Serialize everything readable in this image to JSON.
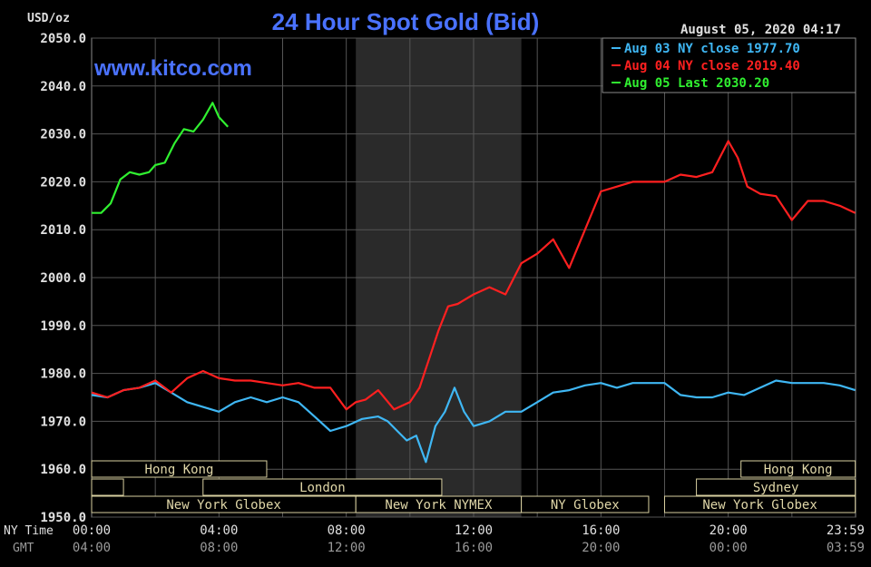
{
  "header": {
    "title": "24 Hour Spot Gold (Bid)",
    "unit": "USD/oz",
    "timestamp": "August 05, 2020 04:17",
    "watermark": "www.kitco.com"
  },
  "legend": {
    "placement": "top-right",
    "entries": [
      {
        "label": "Aug 03 NY close 1977.70",
        "color": "#3fb7f4"
      },
      {
        "label": "Aug 04 NY close 2019.40",
        "color": "#ff2020"
      },
      {
        "label": "Aug 05 Last 2030.20",
        "color": "#30f030"
      }
    ]
  },
  "axes": {
    "x_row_label_ny": "NY Time",
    "x_row_label_gmt": "GMT",
    "x_ticks_ny": [
      "00:00",
      "04:00",
      "08:00",
      "12:00",
      "16:00",
      "20:00",
      "23:59"
    ],
    "x_ticks_gmt": [
      "04:00",
      "08:00",
      "12:00",
      "16:00",
      "20:00",
      "00:00",
      "03:59"
    ],
    "y_ticks": [
      "2050.0",
      "2040.0",
      "2030.0",
      "2020.0",
      "2010.0",
      "2000.0",
      "1990.0",
      "1980.0",
      "1970.0",
      "1960.0",
      "1950.0"
    ]
  },
  "sessions": {
    "row1": [
      {
        "label": "Hong Kong",
        "start": 0,
        "end": 5.5
      },
      {
        "label": "Hong Kong",
        "start": 20.4,
        "end": 23.99
      }
    ],
    "row2": [
      {
        "label": "",
        "start": 0,
        "end": 1.0
      },
      {
        "label": "London",
        "start": 3.5,
        "end": 11.0
      },
      {
        "label": "Sydney",
        "start": 19.0,
        "end": 23.99
      }
    ],
    "row3": [
      {
        "label": "New York Globex",
        "start": 0,
        "end": 8.3
      },
      {
        "label": "New York NYMEX",
        "start": 8.3,
        "end": 13.5
      },
      {
        "label": "NY Globex",
        "start": 13.5,
        "end": 17.5
      },
      {
        "label": "New York Globex",
        "start": 18.0,
        "end": 23.99
      }
    ]
  },
  "chart_data": {
    "type": "line",
    "x_unit": "hours NY time",
    "xlim": [
      0,
      24
    ],
    "ylim": [
      1950,
      2050
    ],
    "grid": true,
    "shaded_region": [
      8.3,
      13.5
    ],
    "series": [
      {
        "name": "Aug 03 NY close 1977.70",
        "color": "#3fb7f4",
        "x": [
          0,
          0.5,
          1.0,
          1.5,
          2.0,
          2.5,
          3.0,
          3.5,
          4.0,
          4.5,
          5.0,
          5.5,
          6.0,
          6.5,
          7.0,
          7.5,
          8.0,
          8.5,
          9.0,
          9.3,
          9.6,
          9.9,
          10.2,
          10.5,
          10.8,
          11.1,
          11.4,
          11.7,
          12.0,
          12.5,
          13.0,
          13.5,
          14.0,
          14.5,
          15.0,
          15.5,
          16.0,
          16.5,
          17.0,
          17.5,
          18.0,
          18.5,
          19.0,
          19.5,
          20.0,
          20.5,
          21.0,
          21.5,
          22.0,
          22.5,
          23.0,
          23.5,
          23.99
        ],
        "y": [
          1975.5,
          1975.0,
          1976.5,
          1977.0,
          1978.0,
          1976.0,
          1974.0,
          1973.0,
          1972.0,
          1974.0,
          1975.0,
          1974.0,
          1975.0,
          1974.0,
          1971.0,
          1968.0,
          1969.0,
          1970.5,
          1971.0,
          1970.0,
          1968.0,
          1966.0,
          1967.0,
          1961.5,
          1969.0,
          1972.0,
          1977.0,
          1972.0,
          1969.0,
          1970.0,
          1972.0,
          1972.0,
          1974.0,
          1976.0,
          1976.5,
          1977.5,
          1978.0,
          1977.0,
          1978.0,
          1978.0,
          1978.0,
          1975.5,
          1975.0,
          1975.0,
          1976.0,
          1975.5,
          1977.0,
          1978.5,
          1978.0,
          1978.0,
          1978.0,
          1977.5,
          1976.5
        ]
      },
      {
        "name": "Aug 04 NY close 2019.40",
        "color": "#ff2020",
        "x": [
          0,
          0.5,
          1.0,
          1.5,
          2.0,
          2.5,
          3.0,
          3.5,
          4.0,
          4.5,
          5.0,
          5.5,
          6.0,
          6.5,
          7.0,
          7.5,
          8.0,
          8.3,
          8.6,
          9.0,
          9.5,
          10.0,
          10.3,
          10.6,
          10.9,
          11.2,
          11.5,
          12.0,
          12.5,
          13.0,
          13.5,
          14.0,
          14.5,
          15.0,
          15.5,
          16.0,
          16.5,
          17.0,
          17.5,
          18.0,
          18.5,
          19.0,
          19.5,
          20.0,
          20.3,
          20.6,
          21.0,
          21.5,
          22.0,
          22.5,
          23.0,
          23.5,
          23.99
        ],
        "y": [
          1976.0,
          1975.0,
          1976.5,
          1977.0,
          1978.5,
          1976.0,
          1979.0,
          1980.5,
          1979.0,
          1978.5,
          1978.5,
          1978.0,
          1977.5,
          1978.0,
          1977.0,
          1977.0,
          1972.5,
          1974.0,
          1974.5,
          1976.5,
          1972.5,
          1974.0,
          1977.0,
          1983.0,
          1989.0,
          1994.0,
          1994.5,
          1996.5,
          1998.0,
          1996.5,
          2003.0,
          2005.0,
          2008.0,
          2002.0,
          2010.0,
          2018.0,
          2019.0,
          2020.0,
          2020.0,
          2020.0,
          2021.5,
          2021.0,
          2022.0,
          2028.5,
          2025.0,
          2019.0,
          2017.5,
          2017.0,
          2012.0,
          2016.0,
          2016.0,
          2015.0,
          2013.5
        ]
      },
      {
        "name": "Aug 05 Last 2030.20",
        "color": "#30f030",
        "x": [
          0,
          0.3,
          0.6,
          0.9,
          1.2,
          1.5,
          1.8,
          2.0,
          2.3,
          2.6,
          2.9,
          3.2,
          3.5,
          3.8,
          4.0,
          4.28
        ],
        "y": [
          2013.5,
          2013.5,
          2015.5,
          2020.5,
          2022.0,
          2021.5,
          2022.0,
          2023.5,
          2024.0,
          2028.0,
          2031.0,
          2030.5,
          2033.0,
          2036.5,
          2033.5,
          2031.5
        ]
      }
    ]
  }
}
